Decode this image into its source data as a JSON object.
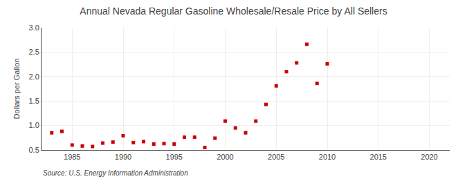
{
  "chart_data": {
    "type": "scatter",
    "title": "Annual Nevada Regular Gasoline Wholesale/Resale Price by All Sellers",
    "ylabel": "Dollars per Gallon",
    "source": "Source: U.S. Energy Information Administration",
    "x": [
      1983,
      1984,
      1985,
      1986,
      1987,
      1988,
      1989,
      1990,
      1991,
      1992,
      1993,
      1994,
      1995,
      1996,
      1997,
      1998,
      1999,
      2000,
      2001,
      2002,
      2003,
      2004,
      2005,
      2006,
      2007,
      2008,
      2009,
      2010
    ],
    "values": [
      0.85,
      0.88,
      0.6,
      0.58,
      0.57,
      0.64,
      0.66,
      0.79,
      0.65,
      0.67,
      0.62,
      0.63,
      0.62,
      0.76,
      0.76,
      0.55,
      0.74,
      1.09,
      0.95,
      0.85,
      1.09,
      1.43,
      1.81,
      2.1,
      2.28,
      2.66,
      1.86,
      2.26
    ],
    "color": "#cc0000",
    "marker": "square",
    "xlim": [
      1982,
      2022
    ],
    "ylim": [
      0.5,
      3.0
    ],
    "xticks": [
      1985,
      1990,
      1995,
      2000,
      2005,
      2010,
      2015,
      2020
    ],
    "yticks": [
      0.5,
      {
        "value": 1.0,
        "label": "1.0"
      },
      1.5,
      {
        "value": 2.0,
        "label": "2.0"
      },
      2.5,
      {
        "value": 3.0,
        "label": "3.0"
      }
    ],
    "grid": true
  }
}
